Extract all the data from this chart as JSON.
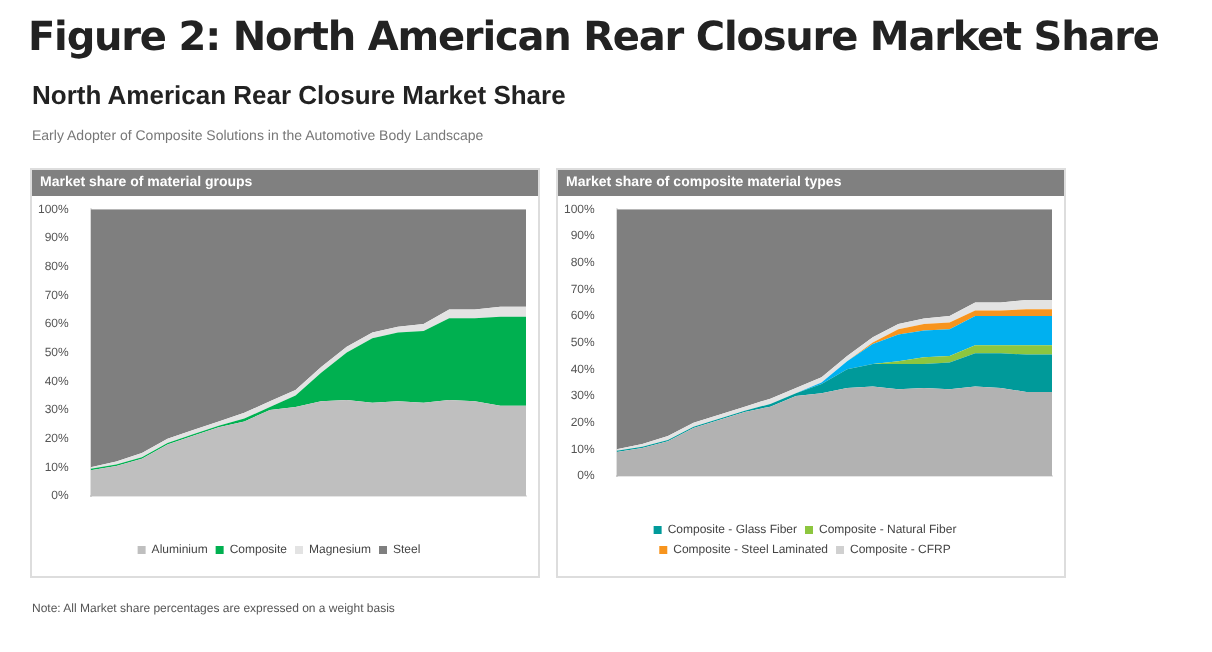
{
  "chart_data": [
    {
      "type": "area",
      "title": "Market share of material groups",
      "annotations": [
        "Figure 2: North American Rear Closure Market Share",
        "North American Rear Closure Market Share",
        "Early Adopter of Composite Solutions in the Automotive Body Landscape",
        "Note: All Market share percentages are expressed on a weight basis"
      ],
      "categories": [
        null,
        null,
        null,
        null,
        null,
        null,
        null,
        null,
        null,
        null,
        null,
        null,
        null,
        null,
        null,
        null,
        null,
        null
      ],
      "stacked": true,
      "ylim": [
        0,
        100
      ],
      "yticks": [
        {
          "value": 0,
          "label": "0%"
        },
        {
          "value": 10,
          "label": "10%"
        },
        {
          "value": 20,
          "label": "20%"
        },
        {
          "value": 30,
          "label": "30%"
        },
        {
          "value": 40,
          "label": "40%"
        },
        {
          "value": 50,
          "label": "50%"
        },
        {
          "value": 60,
          "label": "60%"
        },
        {
          "value": 70,
          "label": "70%"
        },
        {
          "value": 80,
          "label": "80%"
        },
        {
          "value": 90,
          "label": "90%"
        },
        {
          "value": 100,
          "label": "100%"
        }
      ],
      "grid": false,
      "legend": "bottom",
      "series": [
        {
          "name": "Aluminium",
          "color": "#bfbfbf",
          "values": [
            9,
            10.5,
            13,
            18,
            21,
            24,
            26,
            30,
            31,
            33,
            33.5,
            32.5,
            33,
            32.5,
            33.5,
            33,
            31.5,
            31.5
          ]
        },
        {
          "name": "Composite",
          "color": "#00b050",
          "values": [
            0.5,
            0.5,
            0.5,
            0.5,
            0.5,
            0.5,
            1,
            1,
            4,
            10,
            16.5,
            22.5,
            24,
            25,
            28.5,
            29,
            31,
            31
          ]
        },
        {
          "name": "Magnesium",
          "color": "#e3e3e3",
          "values": [
            0.5,
            1,
            1.5,
            1.5,
            1.5,
            1.5,
            2,
            2,
            2,
            2,
            2,
            2,
            2,
            2.5,
            3,
            3,
            3.5,
            3.5
          ]
        },
        {
          "name": "Steel",
          "color": "#7f7f7f",
          "values": [
            90,
            88,
            85,
            80,
            77,
            74,
            71,
            67,
            63,
            55,
            48,
            43,
            41,
            40,
            35,
            35,
            34,
            34
          ]
        }
      ]
    },
    {
      "type": "area",
      "title": "Market share of composite material types",
      "categories": [
        null,
        null,
        null,
        null,
        null,
        null,
        null,
        null,
        null,
        null,
        null,
        null,
        null,
        null,
        null,
        null,
        null,
        null
      ],
      "stacked": true,
      "ylim": [
        0,
        100
      ],
      "yticks": [
        {
          "value": 0,
          "label": "0%"
        },
        {
          "value": 10,
          "label": "10%"
        },
        {
          "value": 20,
          "label": "20%"
        },
        {
          "value": 30,
          "label": "30%"
        },
        {
          "value": 40,
          "label": "40%"
        },
        {
          "value": 50,
          "label": "50%"
        },
        {
          "value": 60,
          "label": "60%"
        },
        {
          "value": 70,
          "label": "70%"
        },
        {
          "value": 80,
          "label": "80%"
        },
        {
          "value": 90,
          "label": "90%"
        },
        {
          "value": 100,
          "label": "100%"
        }
      ],
      "grid": false,
      "legend": "bottom",
      "series": [
        {
          "color": "#b2b2b2",
          "values": [
            9,
            10.5,
            13,
            18,
            21,
            24,
            26,
            30,
            31,
            33,
            33.5,
            32.5,
            33,
            32.5,
            33.5,
            33,
            31.5,
            31.5
          ]
        },
        {
          "name": "Composite - Glass Fiber",
          "color": "#009a9a",
          "values": [
            0.5,
            0.5,
            0.5,
            0.5,
            0.5,
            0.5,
            1,
            1,
            3.5,
            7,
            8.5,
            9.5,
            9,
            10,
            12.5,
            13,
            14,
            14
          ]
        },
        {
          "name": "Composite - Natural Fiber",
          "color": "#8dc63f",
          "values": [
            0,
            0,
            0,
            0,
            0,
            0,
            0,
            0,
            0,
            0,
            0,
            1,
            2.5,
            2.5,
            3,
            3,
            3.5,
            3.5
          ]
        },
        {
          "color": "#00b0f0",
          "values": [
            0,
            0,
            0,
            0,
            0,
            0,
            0,
            0,
            0.5,
            3,
            7.5,
            10,
            10,
            10,
            11,
            11,
            11,
            11
          ]
        },
        {
          "name": "Composite - Steel Laminated",
          "color": "#f7941d",
          "values": [
            0,
            0,
            0,
            0,
            0,
            0,
            0,
            0,
            0,
            0,
            0.5,
            2,
            2.5,
            2.5,
            2,
            2,
            2.5,
            2.5
          ]
        },
        {
          "color": "#e3e3e3",
          "values": [
            0.5,
            1,
            1.5,
            1.5,
            1.5,
            1.5,
            2,
            2,
            2,
            2,
            2,
            2,
            2,
            2.5,
            3,
            3,
            3.5,
            3.5
          ]
        },
        {
          "color": "#7f7f7f",
          "values": [
            90,
            88,
            85,
            80,
            77,
            74,
            71,
            67,
            63,
            55,
            48,
            43,
            41,
            40,
            35,
            35,
            34,
            34
          ]
        },
        {
          "name": "Composite - CFRP",
          "color": "#d0d0d0",
          "values": [
            null,
            null,
            null,
            null,
            null,
            null,
            null,
            null,
            null,
            null,
            null,
            null,
            null,
            null,
            null,
            null,
            null,
            null
          ]
        }
      ]
    }
  ]
}
